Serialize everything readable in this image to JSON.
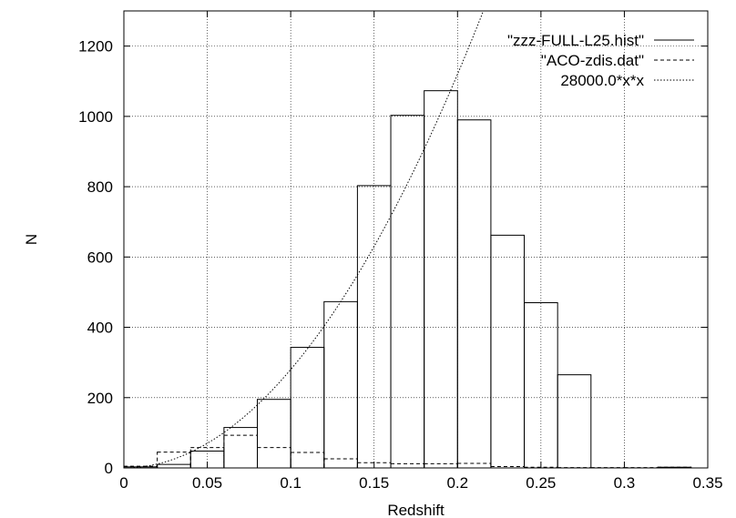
{
  "chart_data": {
    "type": "bar",
    "xlabel": "Redshift",
    "ylabel": "N",
    "xlim": [
      0,
      0.35
    ],
    "ylim": [
      0,
      1300
    ],
    "xticks": [
      0,
      0.05,
      0.1,
      0.15,
      0.2,
      0.25,
      0.3,
      0.35
    ],
    "xtick_labels": [
      "0",
      "0.05",
      "0.1",
      "0.15",
      "0.2",
      "0.25",
      "0.3",
      "0.35"
    ],
    "yticks": [
      0,
      200,
      400,
      600,
      800,
      1000,
      1200
    ],
    "ytick_labels": [
      "0",
      "200",
      "400",
      "600",
      "800",
      "1000",
      "1200"
    ],
    "grid": true,
    "legend_position": "top-right",
    "bin_edges": [
      0,
      0.02,
      0.04,
      0.06,
      0.08,
      0.1,
      0.12,
      0.14,
      0.16,
      0.18,
      0.2,
      0.22,
      0.24,
      0.26,
      0.28,
      0.3,
      0.32,
      0.34
    ],
    "series": [
      {
        "name": "\"zzz-FULL-L25.hist\"",
        "style": "solid",
        "kind": "histogram",
        "values": [
          3,
          10,
          48,
          115,
          195,
          343,
          473,
          803,
          1003,
          1073,
          990,
          662,
          470,
          265,
          0,
          0,
          2
        ]
      },
      {
        "name": "\"ACO-zdis.dat\"",
        "style": "dashed",
        "kind": "histogram",
        "values": [
          5,
          45,
          58,
          93,
          58,
          44,
          26,
          15,
          12,
          12,
          13,
          4,
          2,
          1,
          1,
          1,
          2
        ]
      },
      {
        "name": "28000.0*x*x",
        "style": "dotted",
        "kind": "function",
        "coefficient": 28000.0
      }
    ],
    "colors": {
      "lines": "#000000",
      "grid": "#000000",
      "background": "#ffffff"
    }
  }
}
